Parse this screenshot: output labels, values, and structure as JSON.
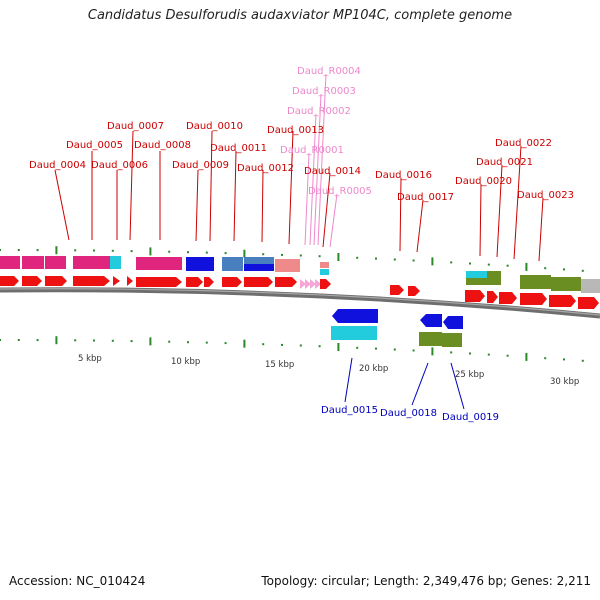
{
  "title": "Candidatus Desulforudis audaxviator MP104C, complete genome",
  "footer": {
    "accession": "Accession: NC_010424",
    "summary": "Topology: circular; Length: 2,349,476 bp; Genes: 2,211"
  },
  "colors": {
    "cds": "#ee1111",
    "magenta": "#e0257f",
    "cyan": "#22ccdd",
    "blue": "#1111dd",
    "steel": "#4a7fbf",
    "pink": "#ef8a8a",
    "olive": "#6b8e23",
    "gray": "#b8b8b8",
    "label_top": "#cc0000",
    "label_rna": "#ee88cc",
    "label_bottom": "#0000bb",
    "tick": "#2a8a2a"
  },
  "scale_labels": [
    "5 kbp",
    "10 kbp",
    "15 kbp",
    "20 kbp",
    "25 kbp",
    "30 kbp"
  ],
  "gene_labels_top": [
    "Daud_0004",
    "Daud_0005",
    "Daud_0006",
    "Daud_0007",
    "Daud_0008",
    "Daud_0009",
    "Daud_0010",
    "Daud_0011",
    "Daud_0012",
    "Daud_0013",
    "Daud_0014",
    "Daud_0016",
    "Daud_0017",
    "Daud_0020",
    "Daud_0021",
    "Daud_0022",
    "Daud_0023"
  ],
  "rna_labels": [
    "Daud_R0004",
    "Daud_R0003",
    "Daud_R0002",
    "Daud_R0001",
    "Daud_R0005"
  ],
  "gene_labels_bottom": [
    "Daud_0015",
    "Daud_0018",
    "Daud_0019"
  ]
}
